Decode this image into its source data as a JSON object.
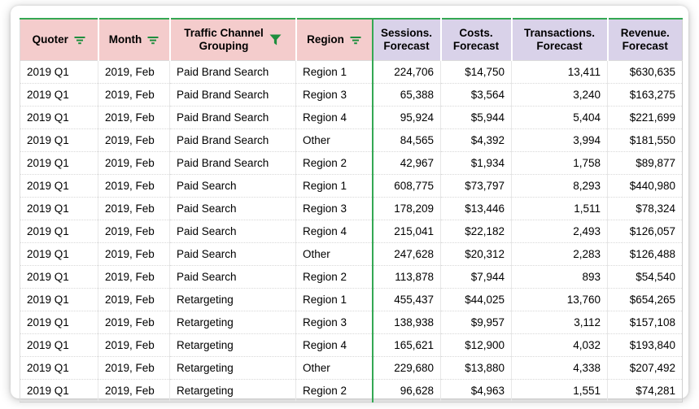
{
  "colors": {
    "header_dimension_bg": "#f4cccc",
    "header_metric_bg": "#d9d2e9",
    "accent_green_border": "#34a853",
    "icon_green": "#1e8e3e",
    "text": "#000000"
  },
  "table": {
    "columns": [
      {
        "key": "quoter",
        "label": "Quoter",
        "icon": "filter-lines-icon",
        "group": "dimension"
      },
      {
        "key": "month",
        "label": "Month",
        "icon": "filter-lines-icon",
        "group": "dimension"
      },
      {
        "key": "channel",
        "label": "Traffic Channel\nGrouping",
        "icon": "filter-funnel-icon",
        "group": "dimension"
      },
      {
        "key": "region",
        "label": "Region",
        "icon": "filter-lines-icon",
        "group": "dimension"
      },
      {
        "key": "sessions",
        "label": "Sessions.\nForecast",
        "icon": null,
        "group": "metric"
      },
      {
        "key": "costs",
        "label": "Costs.\nForecast",
        "icon": null,
        "group": "metric"
      },
      {
        "key": "transactions",
        "label": "Transactions.\nForecast",
        "icon": null,
        "group": "metric"
      },
      {
        "key": "revenue",
        "label": "Revenue.\nForecast",
        "icon": null,
        "group": "metric"
      }
    ],
    "rows": [
      [
        "2019 Q1",
        "2019, Feb",
        "Paid Brand Search",
        "Region 1",
        "224,706",
        "$14,750",
        "13,411",
        "$630,635"
      ],
      [
        "2019 Q1",
        "2019, Feb",
        "Paid Brand Search",
        "Region 3",
        "65,388",
        "$3,564",
        "3,240",
        "$163,275"
      ],
      [
        "2019 Q1",
        "2019, Feb",
        "Paid Brand Search",
        "Region 4",
        "95,924",
        "$5,944",
        "5,404",
        "$221,699"
      ],
      [
        "2019 Q1",
        "2019, Feb",
        "Paid Brand Search",
        "Other",
        "84,565",
        "$4,392",
        "3,994",
        "$181,550"
      ],
      [
        "2019 Q1",
        "2019, Feb",
        "Paid Brand Search",
        "Region 2",
        "42,967",
        "$1,934",
        "1,758",
        "$89,877"
      ],
      [
        "2019 Q1",
        "2019, Feb",
        "Paid Search",
        "Region 1",
        "608,775",
        "$73,797",
        "8,293",
        "$440,980"
      ],
      [
        "2019 Q1",
        "2019, Feb",
        "Paid Search",
        "Region 3",
        "178,209",
        "$13,446",
        "1,511",
        "$78,324"
      ],
      [
        "2019 Q1",
        "2019, Feb",
        "Paid Search",
        "Region 4",
        "215,041",
        "$22,182",
        "2,493",
        "$126,057"
      ],
      [
        "2019 Q1",
        "2019, Feb",
        "Paid Search",
        "Other",
        "247,628",
        "$20,312",
        "2,283",
        "$126,488"
      ],
      [
        "2019 Q1",
        "2019, Feb",
        "Paid Search",
        "Region 2",
        "113,878",
        "$7,944",
        "893",
        "$54,540"
      ],
      [
        "2019 Q1",
        "2019, Feb",
        "Retargeting",
        "Region 1",
        "455,437",
        "$44,025",
        "13,760",
        "$654,265"
      ],
      [
        "2019 Q1",
        "2019, Feb",
        "Retargeting",
        "Region 3",
        "138,938",
        "$9,957",
        "3,112",
        "$157,108"
      ],
      [
        "2019 Q1",
        "2019, Feb",
        "Retargeting",
        "Region 4",
        "165,621",
        "$12,900",
        "4,032",
        "$193,840"
      ],
      [
        "2019 Q1",
        "2019, Feb",
        "Retargeting",
        "Other",
        "229,680",
        "$13,880",
        "4,338",
        "$207,492"
      ],
      [
        "2019 Q1",
        "2019, Feb",
        "Retargeting",
        "Region 2",
        "96,628",
        "$4,963",
        "1,551",
        "$74,281"
      ]
    ]
  }
}
